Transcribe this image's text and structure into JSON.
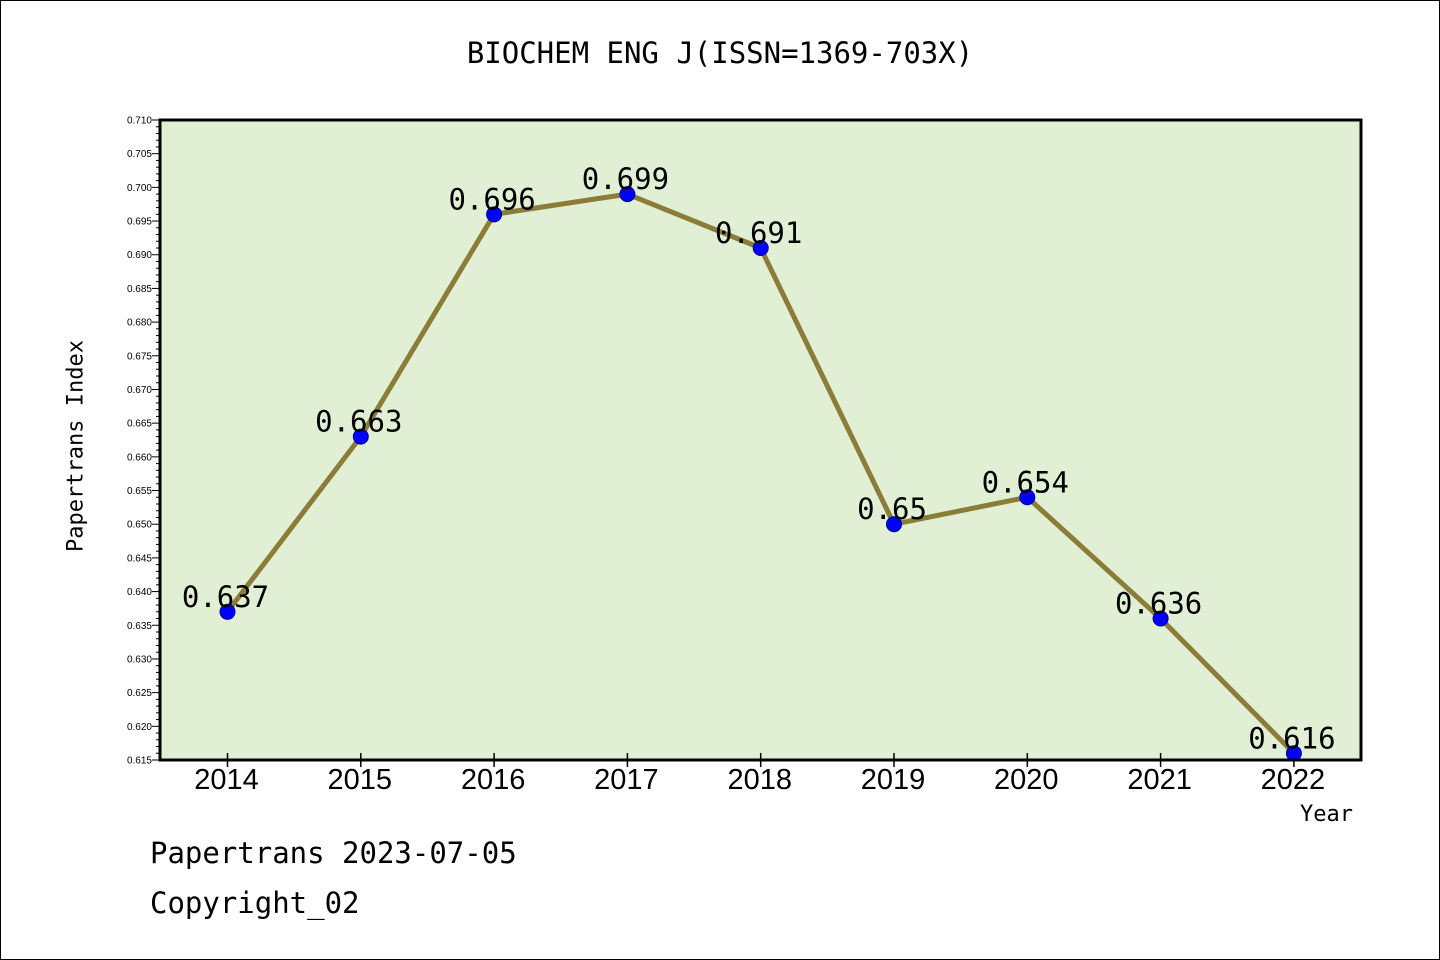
{
  "title": "BIOCHEM ENG J(ISSN=1369-703X)",
  "footer": {
    "line1": "Papertrans 2023-07-05",
    "line2": "Copyright_02"
  },
  "colors": {
    "plot_background": "#e1efd5",
    "line": "#8b7d38",
    "marker": "#0000ff",
    "marker_edge": "#00008b"
  },
  "chart_data": {
    "type": "line",
    "title": "BIOCHEM ENG J(ISSN=1369-703X)",
    "xlabel": "Year",
    "ylabel": "Papertrans Index",
    "categories": [
      "2014",
      "2015",
      "2016",
      "2017",
      "2018",
      "2019",
      "2020",
      "2021",
      "2022"
    ],
    "series": [
      {
        "values": [
          0.637,
          0.663,
          0.696,
          0.699,
          0.691,
          0.65,
          0.654,
          0.636,
          0.616
        ],
        "labels": [
          "0.637",
          "0.663",
          "0.696",
          "0.699",
          "0.691",
          "0.65",
          "0.654",
          "0.636",
          "0.616"
        ]
      }
    ],
    "ylim": [
      0.615,
      0.71
    ],
    "yticks": [
      "0.615",
      "0.620",
      "0.625",
      "0.630",
      "0.635",
      "0.640",
      "0.645",
      "0.650",
      "0.655",
      "0.660",
      "0.665",
      "0.670",
      "0.675",
      "0.680",
      "0.685",
      "0.690",
      "0.695",
      "0.700",
      "0.705",
      "0.710"
    ],
    "grid": false,
    "legend": "none"
  }
}
